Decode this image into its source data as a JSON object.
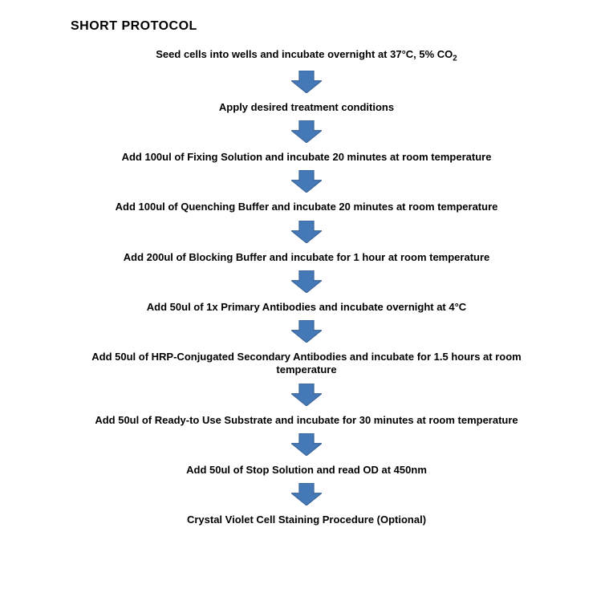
{
  "title": {
    "text": "SHORT PROTOCOL",
    "fontsize": 16,
    "color": "#000000"
  },
  "step_style": {
    "fontsize": 13,
    "color": "#000000",
    "weight": "700"
  },
  "arrow": {
    "fill": "#4578b6",
    "stroke": "#365f93",
    "stroke_width": 1,
    "width": 38,
    "height": 28,
    "shaft_ratio": 0.48,
    "head_ratio": 0.55
  },
  "background_color": "#ffffff",
  "steps": [
    "Seed cells into wells and incubate overnight at 37°C, 5% CO₂",
    "Apply desired treatment conditions",
    "Add 100ul of Fixing Solution and incubate 20 minutes at room temperature",
    "Add 100ul of Quenching Buffer and incubate 20 minutes at room temperature",
    "Add 200ul of Blocking Buffer and incubate for 1 hour at room temperature",
    "Add 50ul of 1x Primary Antibodies and incubate overnight at 4°C",
    "Add 50ul of HRP-Conjugated Secondary Antibodies and incubate for 1.5 hours at room temperature",
    "Add 50ul of Ready-to Use Substrate and incubate for 30 minutes at room temperature",
    "Add 50ul of Stop Solution and read OD at 450nm",
    "Crystal Violet Cell Staining Procedure (Optional)"
  ]
}
